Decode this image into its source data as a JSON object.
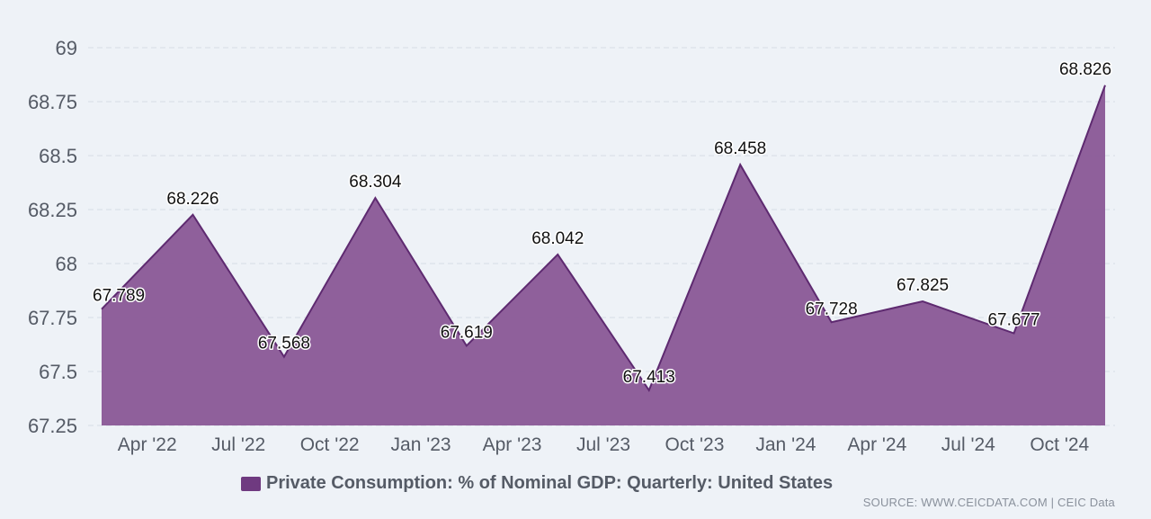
{
  "colors": {
    "series_fill": "#8b5b98",
    "series_stroke": "#5e2a70",
    "legend_swatch": "#6f3a80"
  },
  "chart_data": {
    "type": "area",
    "title": "",
    "xlabel": "",
    "ylabel": "",
    "ylim": [
      67.25,
      69
    ],
    "yticks": [
      67.25,
      67.5,
      67.75,
      68,
      68.25,
      68.5,
      68.75,
      69
    ],
    "ytick_labels": [
      "67.25",
      "67.5",
      "67.75",
      "68",
      "68.25",
      "68.5",
      "68.75",
      "69"
    ],
    "x_tick_labels": [
      "Apr '22",
      "Jul '22",
      "Oct '22",
      "Jan '23",
      "Apr '23",
      "Jul '23",
      "Oct '23",
      "Jan '24",
      "Apr '24",
      "Jul '24",
      "Oct '24"
    ],
    "grid": true,
    "series": [
      {
        "name": "Private Consumption: % of Nominal GDP: Quarterly: United States",
        "x": [
          "Mar 2022",
          "Jun 2022",
          "Sep 2022",
          "Dec 2022",
          "Mar 2023",
          "Jun 2023",
          "Sep 2023",
          "Dec 2023",
          "Mar 2024",
          "Jun 2024",
          "Sep 2024",
          "Dec 2024"
        ],
        "values": [
          67.789,
          68.226,
          67.568,
          68.304,
          67.619,
          68.042,
          67.413,
          68.458,
          67.728,
          67.825,
          67.677,
          68.826
        ],
        "labels": [
          "67.789",
          "68.226",
          "67.568",
          "68.304",
          "67.619",
          "68.042",
          "67.413",
          "68.458",
          "67.728",
          "67.825",
          "67.677",
          "68.826"
        ]
      }
    ],
    "legend": {
      "position": "bottom",
      "text": "Private Consumption: % of Nominal GDP: Quarterly: United States"
    }
  },
  "source": "SOURCE: WWW.CEICDATA.COM | CEIC Data"
}
